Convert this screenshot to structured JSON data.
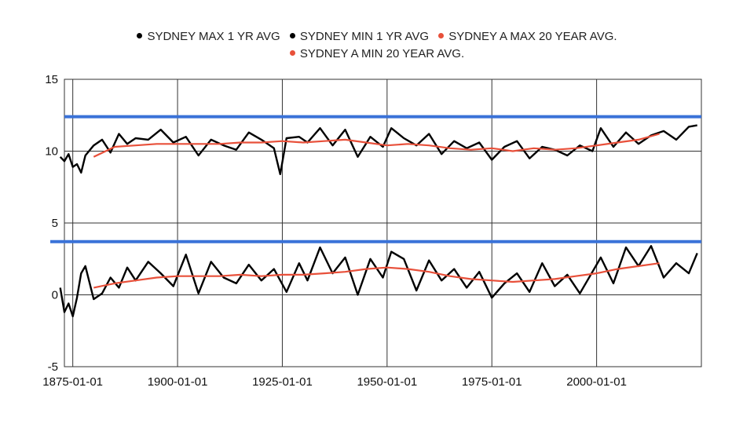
{
  "chart_data": {
    "type": "line",
    "title": "",
    "xlabel": "",
    "ylabel": "",
    "ylim": [
      -5,
      15
    ],
    "xlim": [
      "1873-01-01",
      "2025-01-01"
    ],
    "yticks": [
      "15",
      "10",
      "5",
      "0",
      "-5"
    ],
    "xticks": [
      {
        "label": "1875-01-01",
        "year": 1875
      },
      {
        "label": "1900-01-01",
        "year": 1900
      },
      {
        "label": "1925-01-01",
        "year": 1925
      },
      {
        "label": "1950-01-01",
        "year": 1950
      },
      {
        "label": "1975-01-01",
        "year": 1975
      },
      {
        "label": "2000-01-01",
        "year": 2000
      }
    ],
    "grid": true,
    "legend_position": "top",
    "series": [
      {
        "name": "SYDNEY MAX 1 YR AVG",
        "color": "#000000",
        "x": [
          1872,
          1873,
          1874,
          1875,
          1876,
          1877,
          1878,
          1880,
          1882,
          1884,
          1886,
          1888,
          1890,
          1893,
          1896,
          1899,
          1902,
          1905,
          1908,
          1911,
          1914,
          1917,
          1920,
          1923,
          1924.5,
          1926,
          1929,
          1931,
          1934,
          1937,
          1940,
          1943,
          1946,
          1949,
          1951,
          1954,
          1957,
          1960,
          1963,
          1966,
          1969,
          1972,
          1975,
          1978,
          1981,
          1984,
          1987,
          1990,
          1993,
          1996,
          1999,
          2001,
          2004,
          2007,
          2010,
          2013,
          2016,
          2019,
          2022,
          2024
        ],
        "values": [
          9.6,
          9.3,
          9.8,
          8.9,
          9.1,
          8.5,
          9.7,
          10.4,
          10.8,
          9.9,
          11.2,
          10.5,
          10.9,
          10.8,
          11.5,
          10.6,
          11.0,
          9.7,
          10.8,
          10.4,
          10.1,
          11.3,
          10.8,
          10.2,
          8.4,
          10.9,
          11.0,
          10.6,
          11.6,
          10.4,
          11.5,
          9.6,
          11.0,
          10.3,
          11.6,
          10.9,
          10.4,
          11.2,
          9.8,
          10.7,
          10.2,
          10.6,
          9.4,
          10.3,
          10.7,
          9.5,
          10.3,
          10.1,
          9.7,
          10.4,
          10.0,
          11.6,
          10.3,
          11.3,
          10.5,
          11.1,
          11.4,
          10.8,
          11.7,
          11.8
        ]
      },
      {
        "name": "SYDNEY MIN 1 YR AVG",
        "color": "#000000",
        "x": [
          1872,
          1873,
          1874,
          1875,
          1876,
          1877,
          1878,
          1880,
          1882,
          1884,
          1886,
          1888,
          1890,
          1893,
          1896,
          1899,
          1902,
          1905,
          1908,
          1911,
          1914,
          1917,
          1920,
          1923,
          1926,
          1929,
          1931,
          1934,
          1937,
          1940,
          1943,
          1946,
          1949,
          1951,
          1954,
          1957,
          1960,
          1963,
          1966,
          1969,
          1972,
          1975,
          1978,
          1981,
          1984,
          1987,
          1990,
          1993,
          1996,
          1999,
          2001,
          2004,
          2007,
          2010,
          2013,
          2016,
          2019,
          2022,
          2024
        ],
        "values": [
          0.5,
          -1.2,
          -0.6,
          -1.5,
          -0.2,
          1.5,
          2.0,
          -0.3,
          0.1,
          1.2,
          0.5,
          1.9,
          1.0,
          2.3,
          1.5,
          0.6,
          2.8,
          0.1,
          2.3,
          1.2,
          0.8,
          2.1,
          1.0,
          1.8,
          0.2,
          2.2,
          1.0,
          3.3,
          1.5,
          2.6,
          0.0,
          2.5,
          1.2,
          3.0,
          2.5,
          0.3,
          2.4,
          1.0,
          1.8,
          0.5,
          1.6,
          -0.2,
          0.8,
          1.5,
          0.2,
          2.2,
          0.6,
          1.4,
          0.1,
          1.6,
          2.6,
          0.8,
          3.3,
          2.0,
          3.4,
          1.2,
          2.2,
          1.5,
          2.9
        ]
      },
      {
        "name": "SYDNEY A MAX 20 YEAR AVG.",
        "color": "#e8503a",
        "x": [
          1880,
          1885,
          1890,
          1895,
          1900,
          1905,
          1910,
          1915,
          1920,
          1925,
          1930,
          1935,
          1940,
          1945,
          1950,
          1955,
          1960,
          1965,
          1970,
          1975,
          1980,
          1985,
          1990,
          1995,
          2000,
          2005,
          2010,
          2015
        ],
        "values": [
          9.6,
          10.3,
          10.4,
          10.5,
          10.5,
          10.5,
          10.5,
          10.6,
          10.6,
          10.7,
          10.6,
          10.7,
          10.8,
          10.6,
          10.4,
          10.5,
          10.4,
          10.2,
          10.1,
          10.2,
          10.0,
          10.2,
          10.1,
          10.2,
          10.4,
          10.6,
          10.8,
          11.2
        ]
      },
      {
        "name": "SYDNEY A MIN 20 YEAR AVG.",
        "color": "#e8503a",
        "x": [
          1880,
          1885,
          1890,
          1895,
          1900,
          1905,
          1910,
          1915,
          1920,
          1925,
          1930,
          1935,
          1940,
          1945,
          1950,
          1955,
          1960,
          1965,
          1970,
          1975,
          1980,
          1985,
          1990,
          1995,
          2000,
          2005,
          2010,
          2015
        ],
        "values": [
          0.5,
          0.8,
          1.0,
          1.2,
          1.3,
          1.3,
          1.3,
          1.4,
          1.3,
          1.4,
          1.4,
          1.5,
          1.6,
          1.8,
          1.9,
          1.8,
          1.6,
          1.3,
          1.1,
          1.0,
          0.9,
          1.0,
          1.1,
          1.3,
          1.5,
          1.8,
          2.0,
          2.2
        ]
      }
    ],
    "reference_lines": [
      {
        "y": 12.4,
        "color": "#3a72d8"
      },
      {
        "y": 3.7,
        "color": "#3a72d8"
      }
    ]
  }
}
